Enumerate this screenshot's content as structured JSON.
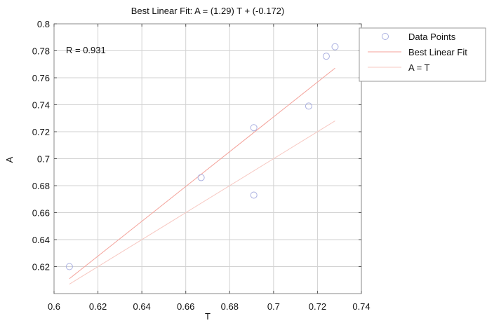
{
  "chart_data": {
    "type": "scatter",
    "title": "Best Linear Fit:  A = (1.29) T + (-0.172)",
    "xlabel": "T",
    "ylabel": "A",
    "xlim": [
      0.6,
      0.74
    ],
    "ylim": [
      0.6,
      0.8
    ],
    "x_ticks": [
      0.6,
      0.62,
      0.64,
      0.66,
      0.68,
      0.7,
      0.72,
      0.74
    ],
    "x_tick_labels": [
      "0.6",
      "0.62",
      "0.64",
      "0.66",
      "0.68",
      "0.7",
      "0.72",
      "0.74"
    ],
    "y_ticks": [
      0.62,
      0.64,
      0.66,
      0.68,
      0.7,
      0.72,
      0.74,
      0.76,
      0.78,
      0.8
    ],
    "y_tick_labels": [
      "0.62",
      "0.64",
      "0.66",
      "0.68",
      "0.7",
      "0.72",
      "0.74",
      "0.76",
      "0.78",
      "0.8"
    ],
    "grid": true,
    "annotation": "R = 0.931",
    "series": [
      {
        "name": "Data Points",
        "kind": "markers",
        "color": "#aab0e0",
        "x": [
          0.607,
          0.667,
          0.691,
          0.691,
          0.716,
          0.724,
          0.728
        ],
        "y": [
          0.62,
          0.686,
          0.723,
          0.673,
          0.739,
          0.776,
          0.783
        ]
      },
      {
        "name": "Best Linear Fit",
        "kind": "line",
        "color": "#f4a29a",
        "slope": 1.29,
        "intercept": -0.172,
        "x_range": [
          0.607,
          0.728
        ]
      },
      {
        "name": "A = T",
        "kind": "line",
        "color": "#f7c8c2",
        "slope": 1,
        "intercept": 0,
        "x_range": [
          0.607,
          0.728
        ]
      }
    ],
    "legend_position": "outside-top-right"
  }
}
